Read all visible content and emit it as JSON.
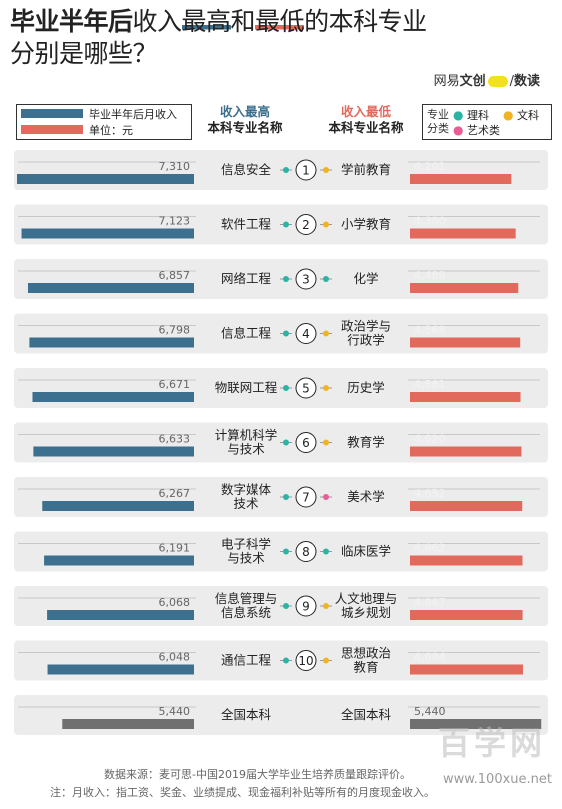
{
  "title": {
    "line1_a": "毕业半年后",
    "line1_b": "收入",
    "line1_c": "最高",
    "line1_d": "和",
    "line1_e": "最低",
    "line1_f": "的本科专业",
    "line2": "分别是哪些？"
  },
  "brand": {
    "left": "网易",
    "mid": "文创",
    "right": "数读",
    "sep": "/"
  },
  "legend": {
    "series_label": "毕业半年后月收入",
    "unit": "单位：元"
  },
  "column_headers": {
    "high_1": "收入最高",
    "high_2": "本科专业名称",
    "low_1": "收入最低",
    "low_2": "本科专业名称"
  },
  "category_legend": {
    "label": "专业分类",
    "items": [
      {
        "name": "理科",
        "color": "#2bb3a3"
      },
      {
        "name": "文科",
        "color": "#f0b323"
      },
      {
        "name": "艺术类",
        "color": "#e85d96"
      }
    ]
  },
  "chart_data": {
    "type": "bar",
    "title": "毕业半年后收入最高和最低的本科专业分别是哪些？",
    "unit": "元",
    "series": [
      {
        "name": "收入最高",
        "color": "#3d6f8e"
      },
      {
        "name": "收入最低",
        "color": "#e26a5c"
      }
    ],
    "ranks": [
      "1",
      "2",
      "3",
      "4",
      "5",
      "6",
      "7",
      "8",
      "9",
      "10"
    ],
    "high": [
      {
        "major": [
          "信息安全"
        ],
        "value": 7310,
        "class": "理科"
      },
      {
        "major": [
          "软件工程"
        ],
        "value": 7123,
        "class": "理科"
      },
      {
        "major": [
          "网络工程"
        ],
        "value": 6857,
        "class": "理科"
      },
      {
        "major": [
          "信息工程"
        ],
        "value": 6798,
        "class": "理科"
      },
      {
        "major": [
          "物联网工程"
        ],
        "value": 6671,
        "class": "理科"
      },
      {
        "major": [
          "计算机科学",
          "与技术"
        ],
        "value": 6633,
        "class": "理科"
      },
      {
        "major": [
          "数字媒体",
          "技术"
        ],
        "value": 6267,
        "class": "理科"
      },
      {
        "major": [
          "电子科学",
          "与技术"
        ],
        "value": 6191,
        "class": "理科"
      },
      {
        "major": [
          "信息管理与",
          "信息系统"
        ],
        "value": 6068,
        "class": "理科"
      },
      {
        "major": [
          "通信工程"
        ],
        "value": 6048,
        "class": "理科"
      }
    ],
    "low": [
      {
        "major": [
          "学前教育"
        ],
        "value": 4201,
        "class": "文科"
      },
      {
        "major": [
          "小学教育"
        ],
        "value": 4380,
        "class": "文科"
      },
      {
        "major": [
          "化学"
        ],
        "value": 4489,
        "class": "理科"
      },
      {
        "major": [
          "政治学与",
          "行政学"
        ],
        "value": 4568,
        "class": "文科"
      },
      {
        "major": [
          "历史学"
        ],
        "value": 4581,
        "class": "文科"
      },
      {
        "major": [
          "教育学"
        ],
        "value": 4620,
        "class": "文科"
      },
      {
        "major": [
          "美术学"
        ],
        "value": 4652,
        "class": "艺术类"
      },
      {
        "major": [
          "临床医学"
        ],
        "value": 4662,
        "class": "理科"
      },
      {
        "major": [
          "人文地理与",
          "城乡规划"
        ],
        "value": 4667,
        "class": "文科"
      },
      {
        "major": [
          "思想政治",
          "教育"
        ],
        "value": 4684,
        "class": "文科"
      }
    ],
    "overall": {
      "label": "全国本科",
      "value": 5440,
      "color": "#707070"
    }
  },
  "footer": {
    "source": "数据来源：麦可思-中国2019届大学毕业生培养质量跟踪评价。",
    "note": "注：月收入：指工资、奖金、业绩提成、现金福利补贴等所有的月度现金收入。"
  },
  "watermark": {
    "text": "百学网",
    "url": "www.100xue.net"
  }
}
